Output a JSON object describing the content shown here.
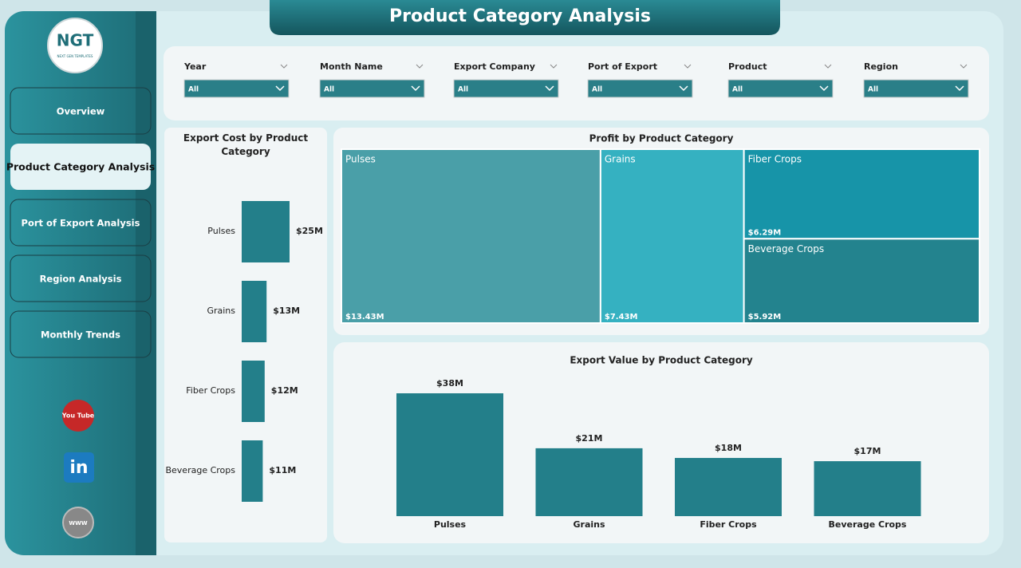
{
  "header": {
    "title": "Product Category Analysis"
  },
  "logo": {
    "text": "NGT",
    "tagline": "NEXT GEN TEMPLATES"
  },
  "navigation": [
    "Overview",
    "Product Category Analysis",
    "Port of Export Analysis",
    "Region Analysis",
    "Monthly Trends"
  ],
  "icons": {
    "youtube": "You Tube",
    "linkedin": "in",
    "website": "WWW"
  },
  "filters": [
    {
      "label": "Year",
      "value": "All"
    },
    {
      "label": "Month Name",
      "value": "All"
    },
    {
      "label": "Export Company",
      "value": "All"
    },
    {
      "label": "Port of Export",
      "value": "All"
    },
    {
      "label": "Product",
      "value": "All"
    },
    {
      "label": "Region",
      "value": "All"
    }
  ],
  "chart_data": [
    {
      "type": "hbar",
      "title": "Export Cost by Product Category",
      "categories": [
        "Pulses",
        "Grains",
        "Fiber Crops",
        "Beverage Crops"
      ],
      "values": [
        25,
        13,
        12,
        11
      ],
      "value_labels": [
        "$25M",
        "$13M",
        "$12M",
        "$11M"
      ],
      "color": "#237f8a"
    },
    {
      "type": "treemap",
      "title": "Profit by Product Category",
      "categories": [
        "Pulses",
        "Grains",
        "Fiber Crops",
        "Beverage Crops"
      ],
      "values": [
        13.43,
        7.43,
        6.29,
        5.92
      ],
      "value_labels": [
        "$13.43M",
        "$7.43M",
        "$6.29M",
        "$5.92M"
      ],
      "colors": [
        "#4a9fa8",
        "#35b1c1",
        "#1794a8",
        "#23838e"
      ]
    },
    {
      "type": "bar",
      "title": "Export Value by Product Category",
      "categories": [
        "Pulses",
        "Grains",
        "Fiber Crops",
        "Beverage Crops"
      ],
      "values": [
        38,
        21,
        18,
        17
      ],
      "value_labels": [
        "$38M",
        "$21M",
        "$18M",
        "$17M"
      ],
      "color": "#237f8a"
    }
  ]
}
